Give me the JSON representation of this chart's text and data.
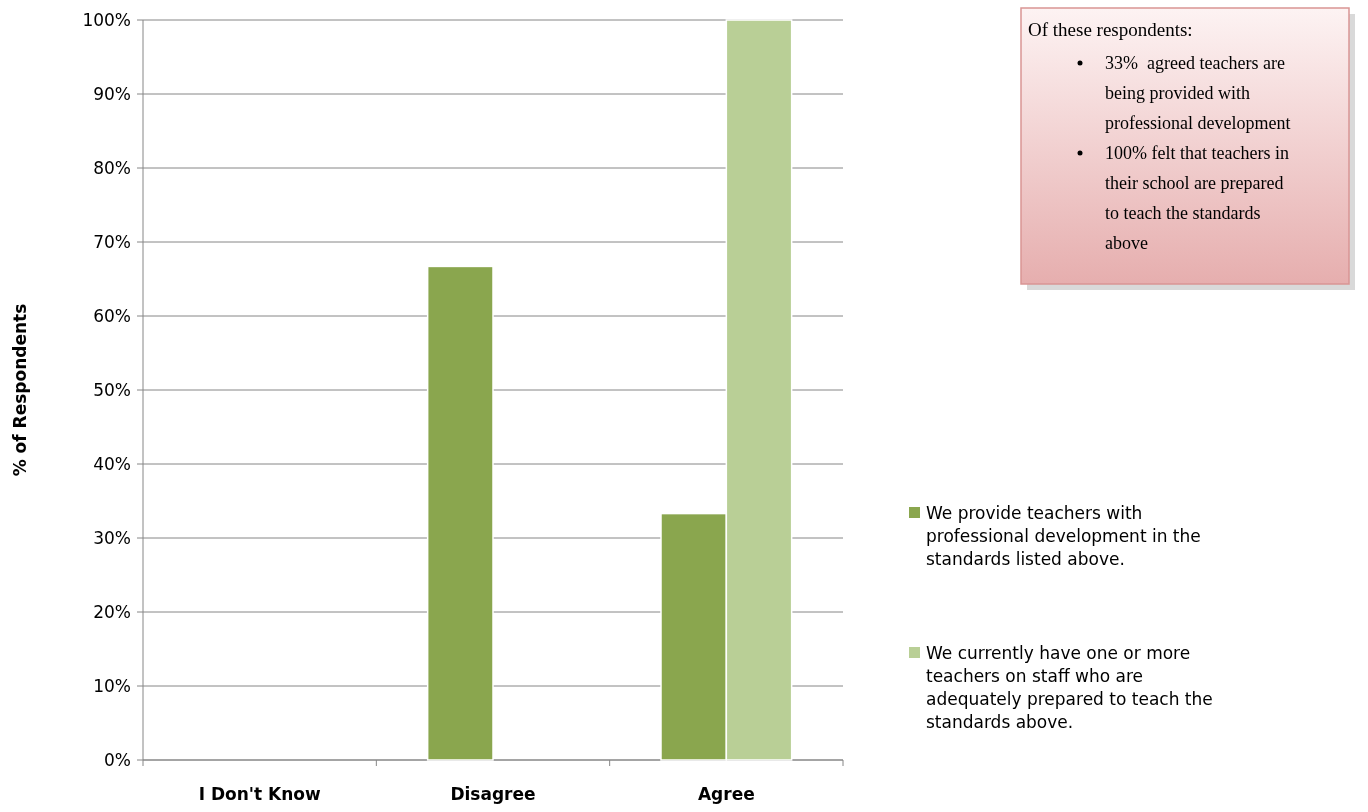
{
  "chart_data": {
    "type": "bar",
    "ylabel": "% of Respondents",
    "categories": [
      "I Don't Know",
      "Disagree",
      "Agree"
    ],
    "series": [
      {
        "name": "We provide teachers with professional development in the standards listed above.",
        "color": "#8aa64e",
        "values": [
          0,
          66.7,
          33.3
        ]
      },
      {
        "name": "We currently have one or more teachers on staff who are adequately prepared to teach the standards above.",
        "color": "#b9cf96",
        "values": [
          0,
          0,
          100
        ]
      }
    ],
    "ylim": [
      0,
      100
    ],
    "yticks": [
      {
        "value": 0,
        "label": "0%"
      },
      {
        "value": 10,
        "label": "10%"
      },
      {
        "value": 20,
        "label": "20%"
      },
      {
        "value": 30,
        "label": "30%"
      },
      {
        "value": 40,
        "label": "40%"
      },
      {
        "value": 50,
        "label": "50%"
      },
      {
        "value": 60,
        "label": "60%"
      },
      {
        "value": 70,
        "label": "70%"
      },
      {
        "value": 80,
        "label": "80%"
      },
      {
        "value": 90,
        "label": "90%"
      },
      {
        "value": 100,
        "label": "100%"
      }
    ],
    "grid": "y",
    "legend": "right",
    "annotations": [
      "Of these respondents:",
      "33%  agreed teachers are being provided with professional development",
      "100% felt that teachers in their school are prepared to teach the standards above"
    ]
  }
}
